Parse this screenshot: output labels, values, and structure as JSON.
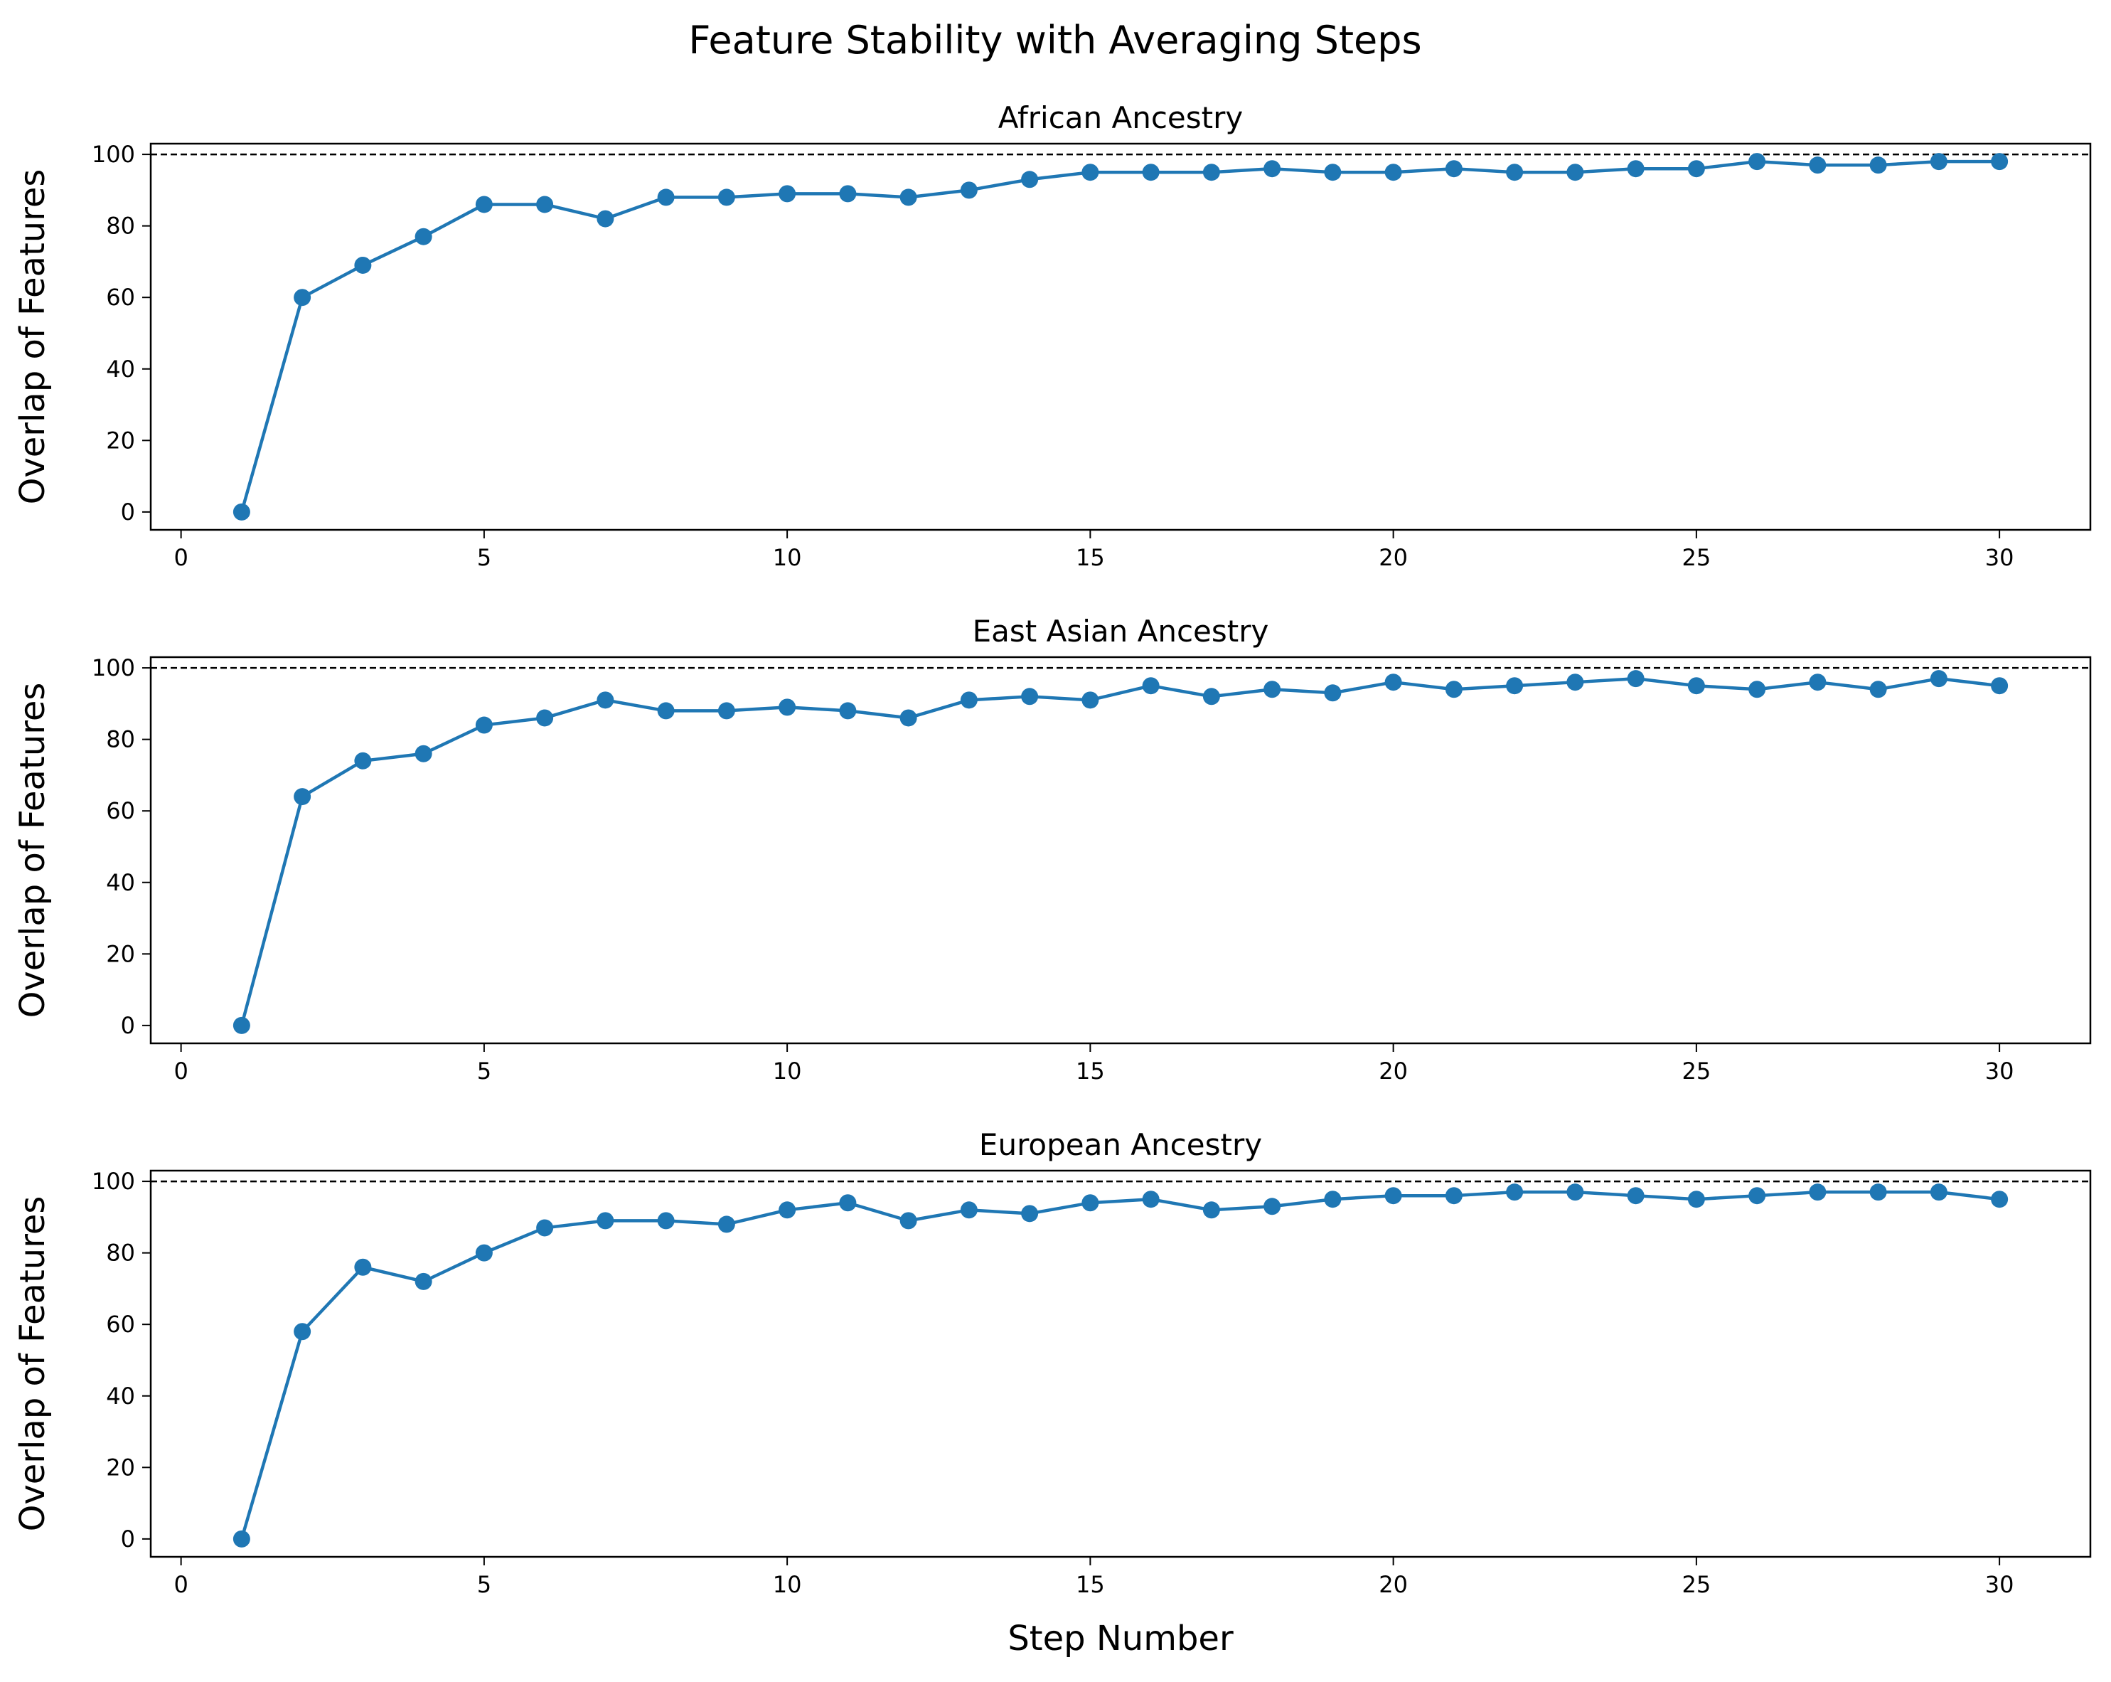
{
  "figure": {
    "title": "Feature Stability with Averaging Steps",
    "xlabel": "Step Number",
    "ylabel": "Overlap of Features"
  },
  "colors": {
    "series": "#1f77b4",
    "reference_line": "#000000",
    "axes": "#000000"
  },
  "chart_data": [
    {
      "type": "line",
      "title": "African Ancestry",
      "xlabel": "Step Number",
      "ylabel": "Overlap of Features",
      "xlim": [
        -0.5,
        31.5
      ],
      "ylim": [
        -5,
        103
      ],
      "xticks": [
        0,
        5,
        10,
        15,
        20,
        25,
        30
      ],
      "yticks": [
        0,
        20,
        40,
        60,
        80,
        100
      ],
      "reference_line": 100,
      "markers": "circle",
      "grid": false,
      "x": [
        1,
        2,
        3,
        4,
        5,
        6,
        7,
        8,
        9,
        10,
        11,
        12,
        13,
        14,
        15,
        16,
        17,
        18,
        19,
        20,
        21,
        22,
        23,
        24,
        25,
        26,
        27,
        28,
        29,
        30
      ],
      "values": [
        0,
        60,
        69,
        77,
        86,
        86,
        82,
        88,
        88,
        89,
        89,
        88,
        90,
        93,
        95,
        95,
        95,
        96,
        95,
        95,
        96,
        95,
        95,
        96,
        96,
        98,
        97,
        97,
        98,
        98
      ]
    },
    {
      "type": "line",
      "title": "East Asian Ancestry",
      "xlabel": "Step Number",
      "ylabel": "Overlap of Features",
      "xlim": [
        -0.5,
        31.5
      ],
      "ylim": [
        -5,
        103
      ],
      "xticks": [
        0,
        5,
        10,
        15,
        20,
        25,
        30
      ],
      "yticks": [
        0,
        20,
        40,
        60,
        80,
        100
      ],
      "reference_line": 100,
      "markers": "circle",
      "grid": false,
      "x": [
        1,
        2,
        3,
        4,
        5,
        6,
        7,
        8,
        9,
        10,
        11,
        12,
        13,
        14,
        15,
        16,
        17,
        18,
        19,
        20,
        21,
        22,
        23,
        24,
        25,
        26,
        27,
        28,
        29,
        30
      ],
      "values": [
        0,
        64,
        74,
        76,
        84,
        86,
        91,
        88,
        88,
        89,
        88,
        86,
        91,
        92,
        91,
        95,
        92,
        94,
        93,
        96,
        94,
        95,
        96,
        97,
        95,
        94,
        96,
        94,
        97,
        95
      ]
    },
    {
      "type": "line",
      "title": "European Ancestry",
      "xlabel": "Step Number",
      "ylabel": "Overlap of Features",
      "xlim": [
        -0.5,
        31.5
      ],
      "ylim": [
        -5,
        103
      ],
      "xticks": [
        0,
        5,
        10,
        15,
        20,
        25,
        30
      ],
      "yticks": [
        0,
        20,
        40,
        60,
        80,
        100
      ],
      "reference_line": 100,
      "markers": "circle",
      "grid": false,
      "x": [
        1,
        2,
        3,
        4,
        5,
        6,
        7,
        8,
        9,
        10,
        11,
        12,
        13,
        14,
        15,
        16,
        17,
        18,
        19,
        20,
        21,
        22,
        23,
        24,
        25,
        26,
        27,
        28,
        29,
        30
      ],
      "values": [
        0,
        58,
        76,
        72,
        80,
        87,
        89,
        89,
        88,
        92,
        94,
        89,
        92,
        91,
        94,
        95,
        92,
        93,
        95,
        96,
        96,
        97,
        97,
        96,
        95,
        96,
        97,
        97,
        97,
        95
      ]
    }
  ]
}
